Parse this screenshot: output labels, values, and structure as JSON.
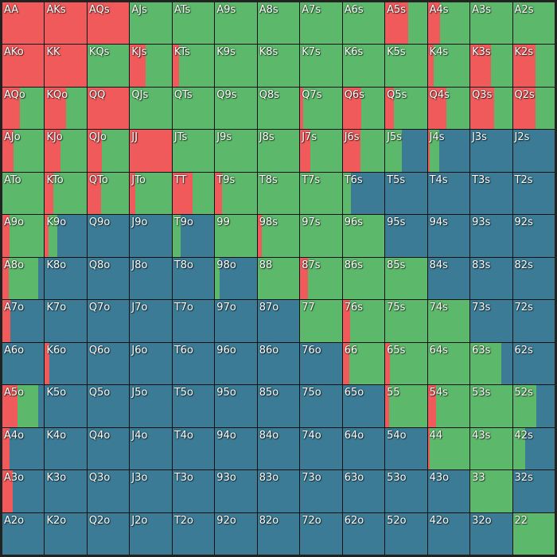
{
  "colors": {
    "raise": "#f05a5a",
    "call": "#5cb86a",
    "fold": "#3b7b95"
  },
  "hands": [
    {
      "label": "AA",
      "raise": 1.0,
      "call": 0.0
    },
    {
      "label": "AKs",
      "raise": 1.0,
      "call": 0.0
    },
    {
      "label": "AQs",
      "raise": 1.0,
      "call": 0.0
    },
    {
      "label": "AJs",
      "raise": 0.0,
      "call": 1.0
    },
    {
      "label": "ATs",
      "raise": 0.0,
      "call": 1.0
    },
    {
      "label": "A9s",
      "raise": 0.0,
      "call": 1.0
    },
    {
      "label": "A8s",
      "raise": 0.0,
      "call": 1.0
    },
    {
      "label": "A7s",
      "raise": 0.0,
      "call": 1.0
    },
    {
      "label": "A6s",
      "raise": 0.0,
      "call": 1.0
    },
    {
      "label": "A5s",
      "raise": 0.55,
      "call": 0.45
    },
    {
      "label": "A4s",
      "raise": 0.3,
      "call": 0.7
    },
    {
      "label": "A3s",
      "raise": 0.0,
      "call": 1.0
    },
    {
      "label": "A2s",
      "raise": 0.0,
      "call": 1.0
    },
    {
      "label": "AKo",
      "raise": 1.0,
      "call": 0.0
    },
    {
      "label": "KK",
      "raise": 1.0,
      "call": 0.0
    },
    {
      "label": "KQs",
      "raise": 0.0,
      "call": 1.0
    },
    {
      "label": "KJs",
      "raise": 0.37,
      "call": 0.63
    },
    {
      "label": "KTs",
      "raise": 0.15,
      "call": 0.85
    },
    {
      "label": "K9s",
      "raise": 0.0,
      "call": 1.0
    },
    {
      "label": "K8s",
      "raise": 0.0,
      "call": 1.0
    },
    {
      "label": "K7s",
      "raise": 0.0,
      "call": 1.0
    },
    {
      "label": "K6s",
      "raise": 0.0,
      "call": 1.0
    },
    {
      "label": "K5s",
      "raise": 0.0,
      "call": 1.0
    },
    {
      "label": "K4s",
      "raise": 0.15,
      "call": 0.85
    },
    {
      "label": "K3s",
      "raise": 0.5,
      "call": 0.5
    },
    {
      "label": "K2s",
      "raise": 0.55,
      "call": 0.45
    },
    {
      "label": "AQo",
      "raise": 0.42,
      "call": 0.58
    },
    {
      "label": "KQo",
      "raise": 0.5,
      "call": 0.5
    },
    {
      "label": "QQ",
      "raise": 1.0,
      "call": 0.0
    },
    {
      "label": "QJs",
      "raise": 0.0,
      "call": 1.0
    },
    {
      "label": "QTs",
      "raise": 0.0,
      "call": 1.0
    },
    {
      "label": "Q9s",
      "raise": 0.0,
      "call": 1.0
    },
    {
      "label": "Q8s",
      "raise": 0.0,
      "call": 1.0
    },
    {
      "label": "Q7s",
      "raise": 0.08,
      "call": 0.92
    },
    {
      "label": "Q6s",
      "raise": 0.45,
      "call": 0.55
    },
    {
      "label": "Q5s",
      "raise": 0.2,
      "call": 0.8
    },
    {
      "label": "Q4s",
      "raise": 0.45,
      "call": 0.55
    },
    {
      "label": "Q3s",
      "raise": 0.57,
      "call": 0.43
    },
    {
      "label": "Q2s",
      "raise": 0.55,
      "call": 0.45
    },
    {
      "label": "AJo",
      "raise": 0.27,
      "call": 0.73
    },
    {
      "label": "KJo",
      "raise": 0.38,
      "call": 0.62
    },
    {
      "label": "QJo",
      "raise": 0.35,
      "call": 0.65
    },
    {
      "label": "JJ",
      "raise": 1.0,
      "call": 0.0
    },
    {
      "label": "JTs",
      "raise": 0.0,
      "call": 1.0
    },
    {
      "label": "J9s",
      "raise": 0.0,
      "call": 1.0
    },
    {
      "label": "J8s",
      "raise": 0.0,
      "call": 1.0
    },
    {
      "label": "J7s",
      "raise": 0.25,
      "call": 0.75
    },
    {
      "label": "J6s",
      "raise": 0.42,
      "call": 0.58
    },
    {
      "label": "J5s",
      "raise": 0.0,
      "call": 0.4
    },
    {
      "label": "J4s",
      "raise": 0.05,
      "call": 0.22
    },
    {
      "label": "J3s",
      "raise": 0.0,
      "call": 0.0
    },
    {
      "label": "J2s",
      "raise": 0.0,
      "call": 0.0
    },
    {
      "label": "ATo",
      "raise": 0.0,
      "call": 1.0
    },
    {
      "label": "KTo",
      "raise": 0.2,
      "call": 0.8
    },
    {
      "label": "QTo",
      "raise": 0.33,
      "call": 0.67
    },
    {
      "label": "JTo",
      "raise": 0.12,
      "call": 0.88
    },
    {
      "label": "TT",
      "raise": 0.48,
      "call": 0.52
    },
    {
      "label": "T9s",
      "raise": 0.17,
      "call": 0.83
    },
    {
      "label": "T8s",
      "raise": 0.0,
      "call": 1.0
    },
    {
      "label": "T7s",
      "raise": 0.0,
      "call": 1.0
    },
    {
      "label": "T6s",
      "raise": 0.0,
      "call": 0.2
    },
    {
      "label": "T5s",
      "raise": 0.0,
      "call": 0.0
    },
    {
      "label": "T4s",
      "raise": 0.0,
      "call": 0.0
    },
    {
      "label": "T3s",
      "raise": 0.0,
      "call": 0.0
    },
    {
      "label": "T2s",
      "raise": 0.0,
      "call": 0.0
    },
    {
      "label": "A9o",
      "raise": 0.17,
      "call": 0.83
    },
    {
      "label": "K9o",
      "raise": 0.08,
      "call": 0.22
    },
    {
      "label": "Q9o",
      "raise": 0.0,
      "call": 0.0
    },
    {
      "label": "J9o",
      "raise": 0.0,
      "call": 0.0
    },
    {
      "label": "T9o",
      "raise": 0.0,
      "call": 0.2
    },
    {
      "label": "99",
      "raise": 0.0,
      "call": 1.0
    },
    {
      "label": "98s",
      "raise": 0.1,
      "call": 0.9
    },
    {
      "label": "97s",
      "raise": 0.0,
      "call": 1.0
    },
    {
      "label": "96s",
      "raise": 0.0,
      "call": 1.0
    },
    {
      "label": "95s",
      "raise": 0.0,
      "call": 0.0
    },
    {
      "label": "94s",
      "raise": 0.0,
      "call": 0.0
    },
    {
      "label": "93s",
      "raise": 0.0,
      "call": 0.0
    },
    {
      "label": "92s",
      "raise": 0.0,
      "call": 0.0
    },
    {
      "label": "A8o",
      "raise": 0.15,
      "call": 0.7
    },
    {
      "label": "K8o",
      "raise": 0.0,
      "call": 0.0
    },
    {
      "label": "Q8o",
      "raise": 0.0,
      "call": 0.0
    },
    {
      "label": "J8o",
      "raise": 0.0,
      "call": 0.0
    },
    {
      "label": "T8o",
      "raise": 0.0,
      "call": 0.0
    },
    {
      "label": "98o",
      "raise": 0.0,
      "call": 0.1
    },
    {
      "label": "88",
      "raise": 0.0,
      "call": 1.0
    },
    {
      "label": "87s",
      "raise": 0.18,
      "call": 0.82
    },
    {
      "label": "86s",
      "raise": 0.0,
      "call": 1.0
    },
    {
      "label": "85s",
      "raise": 0.0,
      "call": 1.0
    },
    {
      "label": "84s",
      "raise": 0.0,
      "call": 0.0
    },
    {
      "label": "83s",
      "raise": 0.0,
      "call": 0.0
    },
    {
      "label": "82s",
      "raise": 0.0,
      "call": 0.0
    },
    {
      "label": "A7o",
      "raise": 0.2,
      "call": 0.0
    },
    {
      "label": "K7o",
      "raise": 0.0,
      "call": 0.0
    },
    {
      "label": "Q7o",
      "raise": 0.0,
      "call": 0.0
    },
    {
      "label": "J7o",
      "raise": 0.0,
      "call": 0.0
    },
    {
      "label": "T7o",
      "raise": 0.0,
      "call": 0.0
    },
    {
      "label": "97o",
      "raise": 0.0,
      "call": 0.0
    },
    {
      "label": "87o",
      "raise": 0.0,
      "call": 0.0
    },
    {
      "label": "77",
      "raise": 0.0,
      "call": 1.0
    },
    {
      "label": "76s",
      "raise": 0.18,
      "call": 0.82
    },
    {
      "label": "75s",
      "raise": 0.0,
      "call": 1.0
    },
    {
      "label": "74s",
      "raise": 0.0,
      "call": 1.0
    },
    {
      "label": "73s",
      "raise": 0.0,
      "call": 0.0
    },
    {
      "label": "72s",
      "raise": 0.0,
      "call": 0.0
    },
    {
      "label": "A6o",
      "raise": 0.0,
      "call": 0.0
    },
    {
      "label": "K6o",
      "raise": 0.1,
      "call": 0.0
    },
    {
      "label": "Q6o",
      "raise": 0.0,
      "call": 0.0
    },
    {
      "label": "J6o",
      "raise": 0.0,
      "call": 0.0
    },
    {
      "label": "T6o",
      "raise": 0.0,
      "call": 0.0
    },
    {
      "label": "96o",
      "raise": 0.0,
      "call": 0.0
    },
    {
      "label": "86o",
      "raise": 0.0,
      "call": 0.0
    },
    {
      "label": "76o",
      "raise": 0.0,
      "call": 0.0
    },
    {
      "label": "66",
      "raise": 0.15,
      "call": 0.85
    },
    {
      "label": "65s",
      "raise": 0.12,
      "call": 0.88
    },
    {
      "label": "64s",
      "raise": 0.0,
      "call": 1.0
    },
    {
      "label": "63s",
      "raise": 0.0,
      "call": 0.75
    },
    {
      "label": "62s",
      "raise": 0.0,
      "call": 0.0
    },
    {
      "label": "A5o",
      "raise": 0.37,
      "call": 0.48
    },
    {
      "label": "K5o",
      "raise": 0.0,
      "call": 0.0
    },
    {
      "label": "Q5o",
      "raise": 0.0,
      "call": 0.0
    },
    {
      "label": "J5o",
      "raise": 0.0,
      "call": 0.0
    },
    {
      "label": "T5o",
      "raise": 0.0,
      "call": 0.0
    },
    {
      "label": "95o",
      "raise": 0.0,
      "call": 0.0
    },
    {
      "label": "85o",
      "raise": 0.0,
      "call": 0.0
    },
    {
      "label": "75o",
      "raise": 0.0,
      "call": 0.0
    },
    {
      "label": "65o",
      "raise": 0.0,
      "call": 0.0
    },
    {
      "label": "55",
      "raise": 0.1,
      "call": 0.9
    },
    {
      "label": "54s",
      "raise": 0.2,
      "call": 0.8
    },
    {
      "label": "53s",
      "raise": 0.0,
      "call": 1.0
    },
    {
      "label": "52s",
      "raise": 0.0,
      "call": 0.57
    },
    {
      "label": "A4o",
      "raise": 0.17,
      "call": 0.0
    },
    {
      "label": "K4o",
      "raise": 0.0,
      "call": 0.0
    },
    {
      "label": "Q4o",
      "raise": 0.0,
      "call": 0.0
    },
    {
      "label": "J4o",
      "raise": 0.0,
      "call": 0.0
    },
    {
      "label": "T4o",
      "raise": 0.0,
      "call": 0.0
    },
    {
      "label": "94o",
      "raise": 0.0,
      "call": 0.0
    },
    {
      "label": "84o",
      "raise": 0.0,
      "call": 0.0
    },
    {
      "label": "74o",
      "raise": 0.0,
      "call": 0.0
    },
    {
      "label": "64o",
      "raise": 0.0,
      "call": 0.0
    },
    {
      "label": "54o",
      "raise": 0.0,
      "call": 0.0
    },
    {
      "label": "44",
      "raise": 0.05,
      "call": 0.95
    },
    {
      "label": "43s",
      "raise": 0.0,
      "call": 1.0
    },
    {
      "label": "42s",
      "raise": 0.0,
      "call": 0.3
    },
    {
      "label": "A3o",
      "raise": 0.25,
      "call": 0.0
    },
    {
      "label": "K3o",
      "raise": 0.0,
      "call": 0.0
    },
    {
      "label": "Q3o",
      "raise": 0.0,
      "call": 0.0
    },
    {
      "label": "J3o",
      "raise": 0.0,
      "call": 0.0
    },
    {
      "label": "T3o",
      "raise": 0.0,
      "call": 0.0
    },
    {
      "label": "93o",
      "raise": 0.0,
      "call": 0.0
    },
    {
      "label": "83o",
      "raise": 0.0,
      "call": 0.0
    },
    {
      "label": "73o",
      "raise": 0.0,
      "call": 0.0
    },
    {
      "label": "63o",
      "raise": 0.0,
      "call": 0.0
    },
    {
      "label": "53o",
      "raise": 0.0,
      "call": 0.0
    },
    {
      "label": "43o",
      "raise": 0.0,
      "call": 0.0
    },
    {
      "label": "33",
      "raise": 0.0,
      "call": 1.0
    },
    {
      "label": "32s",
      "raise": 0.0,
      "call": 0.0
    },
    {
      "label": "A2o",
      "raise": 0.0,
      "call": 0.0
    },
    {
      "label": "K2o",
      "raise": 0.0,
      "call": 0.0
    },
    {
      "label": "Q2o",
      "raise": 0.0,
      "call": 0.0
    },
    {
      "label": "J2o",
      "raise": 0.0,
      "call": 0.0
    },
    {
      "label": "T2o",
      "raise": 0.0,
      "call": 0.0
    },
    {
      "label": "92o",
      "raise": 0.0,
      "call": 0.0
    },
    {
      "label": "82o",
      "raise": 0.0,
      "call": 0.0
    },
    {
      "label": "72o",
      "raise": 0.0,
      "call": 0.0
    },
    {
      "label": "62o",
      "raise": 0.0,
      "call": 0.0
    },
    {
      "label": "52o",
      "raise": 0.0,
      "call": 0.0
    },
    {
      "label": "42o",
      "raise": 0.0,
      "call": 0.0
    },
    {
      "label": "32o",
      "raise": 0.0,
      "call": 0.0
    },
    {
      "label": "22",
      "raise": 0.0,
      "call": 1.0
    }
  ]
}
